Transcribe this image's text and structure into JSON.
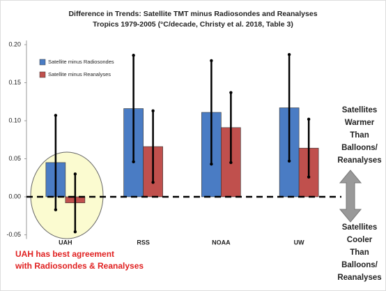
{
  "chart_data": {
    "type": "bar",
    "title": [
      "Difference in Trends: Satellite TMT minus Radiosondes and Reanalyses",
      "Tropics 1979-2005 (°C/decade,  Christy et al. 2018, Table 3)"
    ],
    "categories": [
      "UAH",
      "RSS",
      "NOAA",
      "UW"
    ],
    "series": [
      {
        "name": "Satellite minus Radiosondes",
        "color": "#4a7cc4",
        "values": [
          0.045,
          0.116,
          0.111,
          0.117
        ],
        "errors": [
          0.062,
          0.07,
          0.068,
          0.07
        ]
      },
      {
        "name": "Satellite minus Reanalyses",
        "color": "#c0504d",
        "values": [
          -0.008,
          0.066,
          0.091,
          0.064
        ],
        "errors": [
          0.038,
          0.047,
          0.046,
          0.038
        ]
      }
    ],
    "ylim": [
      -0.05,
      0.2
    ],
    "yticks": [
      {
        "value": -0.05,
        "label": "-0.05"
      },
      {
        "value": 0,
        "label": "0.00"
      },
      {
        "value": 0.05,
        "label": "0.05"
      },
      {
        "value": 0.1,
        "label": "0.10"
      },
      {
        "value": 0.15,
        "label": "0.15"
      },
      {
        "value": 0.2,
        "label": "0.20"
      }
    ],
    "legend": "upper left",
    "annotations": {
      "highlight": [
        "UAH has best agreement",
        "with Radiosondes & Reanalyses"
      ],
      "warmer": [
        "Satellites",
        "Warmer",
        "Than",
        "Balloons/",
        "Reanalyses"
      ],
      "cooler": [
        "Satellites",
        "Cooler",
        "Than",
        "Balloons/",
        "Reanalyses"
      ]
    }
  }
}
